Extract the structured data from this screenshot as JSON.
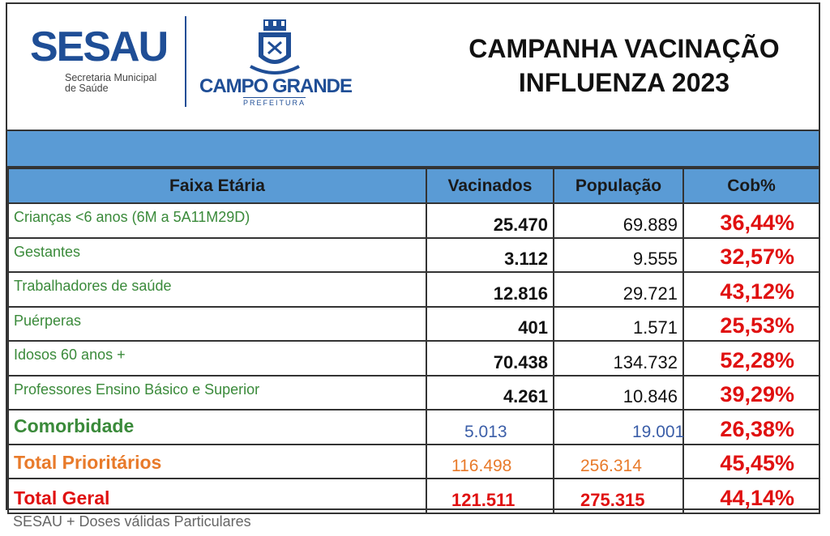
{
  "header": {
    "logo_sesau": "SESAU",
    "logo_sesau_sub_line1": "Secretaria Municipal",
    "logo_sesau_sub_line2": "de Saúde",
    "logo_city": "CAMPO GRANDE",
    "logo_city_sub": "PREFEITURA",
    "title_line1": "CAMPANHA VACINAÇÃO",
    "title_line2": "INFLUENZA 2023"
  },
  "table": {
    "columns": [
      "Faixa Etária",
      "Vacinados",
      "População",
      "Cob%"
    ],
    "rows": [
      {
        "label": "Crianças <6 anos  (6M a 5A11M29D)",
        "vacinados": "25.470",
        "populacao": "69.889",
        "cob": "36,44%"
      },
      {
        "label": "Gestantes",
        "vacinados": "3.112",
        "populacao": "9.555",
        "cob": "32,57%"
      },
      {
        "label": "Trabalhadores de saúde",
        "vacinados": "12.816",
        "populacao": "29.721",
        "cob": "43,12%"
      },
      {
        "label": "Puérperas",
        "vacinados": "401",
        "populacao": "1.571",
        "cob": "25,53%"
      },
      {
        "label": "Idosos 60 anos +",
        "vacinados": "70.438",
        "populacao": "134.732",
        "cob": "52,28%"
      },
      {
        "label": "Professores Ensino Básico e Superior",
        "vacinados": "4.261",
        "populacao": "10.846",
        "cob": "39,29%"
      },
      {
        "label": "Comorbidade",
        "vacinados": "5.013",
        "populacao": "19.001",
        "cob": "26,38%"
      },
      {
        "label": "Total Prioritários",
        "vacinados": "116.498",
        "populacao": "256.314",
        "cob": "45,45%"
      },
      {
        "label": "Total Geral",
        "vacinados": "121.511",
        "populacao": "275.315",
        "cob": "44,14%"
      }
    ]
  },
  "footer": "SESAU + Doses válidas Particulares",
  "colors": {
    "header_blue": "#5a9bd5",
    "logo_blue": "#1f4e96",
    "label_green": "#3a8a3a",
    "coverage_red": "#e01010",
    "priority_orange": "#e87a2a"
  }
}
